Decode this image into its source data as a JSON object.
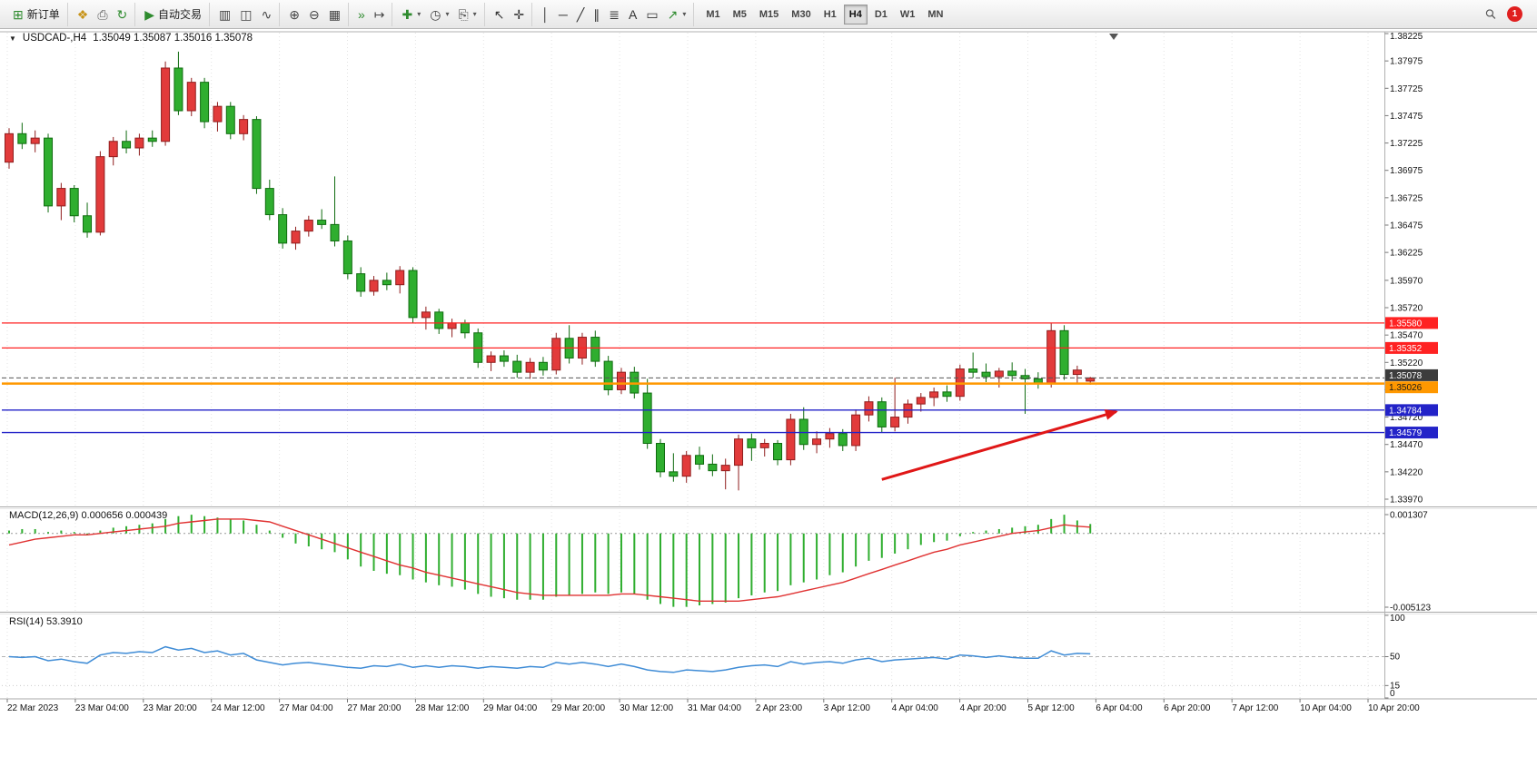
{
  "window": {
    "title": "USDCAD-,H4"
  },
  "toolbar": {
    "groups": [
      {
        "name": "trade",
        "items": [
          {
            "name": "new-order-button",
            "glyph": "⊞",
            "color": "#2e8b2e",
            "label": "新订单"
          }
        ]
      },
      {
        "name": "general",
        "items": [
          {
            "name": "profiles-button",
            "glyph": "❖",
            "color": "#c8941a"
          },
          {
            "name": "print-button",
            "glyph": "⎙",
            "color": "#5a5a5a"
          },
          {
            "name": "community-button",
            "glyph": "↻",
            "color": "#2e8b2e"
          }
        ]
      },
      {
        "name": "autotrade",
        "items": [
          {
            "name": "autotrading-button",
            "glyph": "▶",
            "color": "#2e8b2e",
            "label": "自动交易"
          }
        ]
      },
      {
        "name": "chart-type",
        "items": [
          {
            "name": "bar-chart-button",
            "glyph": "▥",
            "color": "#444444"
          },
          {
            "name": "candlestick-chart-button",
            "glyph": "◫",
            "color": "#444444"
          },
          {
            "name": "line-chart-button",
            "glyph": "∿",
            "color": "#444444"
          }
        ]
      },
      {
        "name": "zoom",
        "items": [
          {
            "name": "zoom-in-button",
            "glyph": "⊕",
            "color": "#444444"
          },
          {
            "name": "zoom-out-button",
            "glyph": "⊖",
            "color": "#444444"
          },
          {
            "name": "tile-windows-button",
            "glyph": "▦",
            "color": "#444444"
          }
        ]
      },
      {
        "name": "scroll",
        "items": [
          {
            "name": "auto-scroll-button",
            "glyph": "»",
            "color": "#2e8b2e"
          },
          {
            "name": "chart-shift-button",
            "glyph": "↦",
            "color": "#444444"
          }
        ]
      },
      {
        "name": "insert",
        "items": [
          {
            "name": "indicators-button",
            "glyph": "✚",
            "color": "#2e8b2e",
            "dropdown": true
          },
          {
            "name": "periods-button",
            "glyph": "◷",
            "color": "#444444",
            "dropdown": true
          },
          {
            "name": "templates-button",
            "glyph": "⎘",
            "color": "#444444",
            "dropdown": true
          }
        ]
      },
      {
        "name": "cursor",
        "items": [
          {
            "name": "cursor-button",
            "glyph": "↖",
            "color": "#333333"
          },
          {
            "name": "crosshair-button",
            "glyph": "✛",
            "color": "#333333"
          }
        ]
      },
      {
        "name": "objects",
        "items": [
          {
            "name": "vertical-line-button",
            "glyph": "│",
            "color": "#333333"
          },
          {
            "name": "horizontal-line-button",
            "glyph": "─",
            "color": "#333333"
          },
          {
            "name": "trendline-button",
            "glyph": "╱",
            "color": "#333333"
          },
          {
            "name": "equidistant-channel-button",
            "glyph": "∥",
            "color": "#333333"
          },
          {
            "name": "fibonacci-button",
            "glyph": "≣",
            "color": "#333333"
          },
          {
            "name": "text-button",
            "glyph": "A",
            "color": "#333333"
          },
          {
            "name": "text-label-button",
            "glyph": "▭",
            "color": "#333333"
          },
          {
            "name": "arrows-button",
            "glyph": "↗",
            "color": "#2e8b2e",
            "dropdown": true
          }
        ]
      }
    ],
    "timeframes": [
      {
        "label": "M1"
      },
      {
        "label": "M5"
      },
      {
        "label": "M15"
      },
      {
        "label": "M30"
      },
      {
        "label": "H1"
      },
      {
        "label": "H4",
        "active": true
      },
      {
        "label": "D1"
      },
      {
        "label": "W1"
      },
      {
        "label": "MN"
      }
    ],
    "badge": "1"
  },
  "chart": {
    "expander_icon": "▼",
    "symbol_label": "USDCAD-,H4",
    "ohlc_label": "1.35049 1.35087 1.35016 1.35078",
    "price_scale": [
      "1.38225",
      "1.37975",
      "1.37725",
      "1.37475",
      "1.37225",
      "1.36975",
      "1.36725",
      "1.36475",
      "1.36225",
      "1.35970",
      "1.35720",
      "1.35470",
      "1.35220",
      "1.34970",
      "1.34720",
      "1.34470",
      "1.34220",
      "1.33970"
    ],
    "time_scale": [
      "22 Mar 2023",
      "23 Mar 04:00",
      "23 Mar 20:00",
      "24 Mar 12:00",
      "27 Mar 04:00",
      "27 Mar 20:00",
      "28 Mar 12:00",
      "29 Mar 04:00",
      "29 Mar 20:00",
      "30 Mar 12:00",
      "31 Mar 04:00",
      "2 Apr 23:00",
      "3 Apr 12:00",
      "4 Apr 04:00",
      "4 Apr 20:00",
      "5 Apr 12:00",
      "6 Apr 04:00",
      "6 Apr 20:00",
      "7 Apr 12:00",
      "10 Apr 04:00",
      "10 Apr 20:00"
    ],
    "lines": [
      {
        "price": 1.3558,
        "tag": "1.35580",
        "color": "#ff2222",
        "tag_bg": "#ff2222",
        "tag_text": "#ffffff",
        "width": 1.2,
        "style": "solid"
      },
      {
        "price": 1.35352,
        "tag": "1.35352",
        "color": "#ff2222",
        "tag_bg": "#ff2222",
        "tag_text": "#ffffff",
        "width": 1.2,
        "style": "solid"
      },
      {
        "price": 1.35078,
        "tag": "1.35078",
        "color": "#555555",
        "tag_bg": "#3c3c3c",
        "tag_text": "#ffffff",
        "width": 1,
        "style": "dash",
        "tag_dy": -3
      },
      {
        "price": 1.35026,
        "tag": "1.35026",
        "color": "#ff9800",
        "tag_bg": "#ff9800",
        "tag_text": "#1a1a1a",
        "width": 2.5,
        "style": "solid",
        "tag_dy": 4
      },
      {
        "price": 1.34784,
        "tag": "1.34784",
        "color": "#2323c8",
        "tag_bg": "#2323c8",
        "tag_text": "#ffffff",
        "width": 1.4,
        "style": "solid"
      },
      {
        "price": 1.34579,
        "tag": "1.34579",
        "color": "#2323c8",
        "tag_bg": "#2323c8",
        "tag_text": "#ffffff",
        "width": 1.4,
        "style": "solid"
      }
    ],
    "arrow": {
      "from_bar": 67,
      "from_price": 1.3415,
      "to_bar": 85,
      "to_price": 1.3477
    },
    "shift_marker_bar": 84.8
  },
  "panels": {
    "macd_label": "MACD(12,26,9) 0.000656 0.000439",
    "rsi_label": "RSI(14) 53.3910",
    "macd_scale": [
      {
        "label": "0.001307",
        "value": 0.001307
      },
      {
        "label": "-0.005123",
        "value": -0.005123
      }
    ],
    "rsi_scale": [
      {
        "label": "100",
        "value": 100
      },
      {
        "label": "50",
        "value": 50
      },
      {
        "label": "15",
        "value": 15
      },
      {
        "label": "0",
        "value": 0
      }
    ]
  },
  "chart_data": {
    "type": "candlestick",
    "symbol": "USDCAD",
    "timeframe": "H4",
    "ohlc_current": {
      "open": 1.35049,
      "high": 1.35087,
      "low": 1.35016,
      "close": 1.35078
    },
    "ylim": [
      1.3391,
      1.3826
    ],
    "colors": {
      "bull": "#e23b3b",
      "bull_stroke": "#8f1d1d",
      "bear": "#2fae2f",
      "bear_stroke": "#0f6b0f",
      "macd_histogram": "#2fae2f",
      "macd_signal": "#e03232",
      "rsi_line": "#3f8cd6",
      "arrow": "#e01717"
    },
    "candles": [
      [
        1.3705,
        1.3736,
        1.3699,
        1.3731
      ],
      [
        1.3731,
        1.3741,
        1.3717,
        1.3722
      ],
      [
        1.3722,
        1.3734,
        1.3714,
        1.3727
      ],
      [
        1.3727,
        1.3731,
        1.3659,
        1.3665
      ],
      [
        1.3665,
        1.3686,
        1.3652,
        1.3681
      ],
      [
        1.3681,
        1.3684,
        1.365,
        1.3656
      ],
      [
        1.3656,
        1.3668,
        1.3636,
        1.3641
      ],
      [
        1.3641,
        1.3715,
        1.3638,
        1.371
      ],
      [
        1.371,
        1.3728,
        1.3702,
        1.3724
      ],
      [
        1.3724,
        1.3734,
        1.3713,
        1.3718
      ],
      [
        1.3718,
        1.3731,
        1.3711,
        1.3727
      ],
      [
        1.3727,
        1.3734,
        1.3719,
        1.3724
      ],
      [
        1.3724,
        1.3797,
        1.372,
        1.3791
      ],
      [
        1.3791,
        1.3806,
        1.3748,
        1.3752
      ],
      [
        1.3752,
        1.3782,
        1.3747,
        1.3778
      ],
      [
        1.3778,
        1.3782,
        1.3736,
        1.3742
      ],
      [
        1.3742,
        1.376,
        1.3733,
        1.3756
      ],
      [
        1.3756,
        1.376,
        1.3726,
        1.3731
      ],
      [
        1.3731,
        1.3748,
        1.3725,
        1.3744
      ],
      [
        1.3744,
        1.3747,
        1.3676,
        1.3681
      ],
      [
        1.3681,
        1.3689,
        1.3652,
        1.3657
      ],
      [
        1.3657,
        1.3663,
        1.3626,
        1.3631
      ],
      [
        1.3631,
        1.3646,
        1.3625,
        1.3642
      ],
      [
        1.3642,
        1.3656,
        1.3637,
        1.3652
      ],
      [
        1.3652,
        1.3662,
        1.3644,
        1.3648
      ],
      [
        1.3648,
        1.3692,
        1.3628,
        1.3633
      ],
      [
        1.3633,
        1.3638,
        1.3598,
        1.3603
      ],
      [
        1.3603,
        1.3609,
        1.3582,
        1.3587
      ],
      [
        1.3587,
        1.3601,
        1.3583,
        1.3597
      ],
      [
        1.3597,
        1.3604,
        1.3588,
        1.3593
      ],
      [
        1.3593,
        1.361,
        1.3585,
        1.3606
      ],
      [
        1.3606,
        1.3609,
        1.3558,
        1.3563
      ],
      [
        1.3563,
        1.3573,
        1.3552,
        1.3568
      ],
      [
        1.3568,
        1.3571,
        1.3548,
        1.3553
      ],
      [
        1.3553,
        1.3562,
        1.3545,
        1.3558
      ],
      [
        1.3558,
        1.3561,
        1.3544,
        1.3549
      ],
      [
        1.3549,
        1.3553,
        1.3517,
        1.3522
      ],
      [
        1.3522,
        1.3532,
        1.3514,
        1.3528
      ],
      [
        1.3528,
        1.3533,
        1.3518,
        1.3523
      ],
      [
        1.3523,
        1.3529,
        1.3508,
        1.3513
      ],
      [
        1.3513,
        1.3526,
        1.3507,
        1.3522
      ],
      [
        1.3522,
        1.3527,
        1.351,
        1.3515
      ],
      [
        1.3515,
        1.3549,
        1.3511,
        1.3544
      ],
      [
        1.3544,
        1.3556,
        1.3521,
        1.3526
      ],
      [
        1.3526,
        1.3549,
        1.352,
        1.3545
      ],
      [
        1.3545,
        1.3551,
        1.3518,
        1.3523
      ],
      [
        1.3523,
        1.3528,
        1.3492,
        1.3497
      ],
      [
        1.3497,
        1.3517,
        1.3493,
        1.3513
      ],
      [
        1.3513,
        1.3518,
        1.3489,
        1.3494
      ],
      [
        1.3494,
        1.3507,
        1.3443,
        1.3448
      ],
      [
        1.3448,
        1.3452,
        1.3417,
        1.3422
      ],
      [
        1.3422,
        1.3439,
        1.3413,
        1.3418
      ],
      [
        1.3418,
        1.3441,
        1.3412,
        1.3437
      ],
      [
        1.3437,
        1.3445,
        1.3424,
        1.3429
      ],
      [
        1.3429,
        1.3438,
        1.3418,
        1.3423
      ],
      [
        1.3423,
        1.3434,
        1.3406,
        1.3428
      ],
      [
        1.3428,
        1.3456,
        1.3405,
        1.3452
      ],
      [
        1.3452,
        1.3457,
        1.3432,
        1.3444
      ],
      [
        1.3444,
        1.3452,
        1.3436,
        1.3448
      ],
      [
        1.3448,
        1.3451,
        1.3428,
        1.3433
      ],
      [
        1.3433,
        1.3475,
        1.3428,
        1.347
      ],
      [
        1.347,
        1.3481,
        1.3442,
        1.3447
      ],
      [
        1.3447,
        1.3459,
        1.3439,
        1.3452
      ],
      [
        1.3452,
        1.3462,
        1.3444,
        1.3457
      ],
      [
        1.3457,
        1.3461,
        1.3441,
        1.3446
      ],
      [
        1.3446,
        1.3479,
        1.3441,
        1.3474
      ],
      [
        1.3474,
        1.3491,
        1.3468,
        1.3486
      ],
      [
        1.3486,
        1.349,
        1.3458,
        1.3463
      ],
      [
        1.3463,
        1.3508,
        1.3459,
        1.3472
      ],
      [
        1.3472,
        1.3488,
        1.3466,
        1.3484
      ],
      [
        1.3484,
        1.3494,
        1.3477,
        1.349
      ],
      [
        1.349,
        1.3499,
        1.3482,
        1.3495
      ],
      [
        1.3495,
        1.3501,
        1.3486,
        1.3491
      ],
      [
        1.3491,
        1.352,
        1.3487,
        1.3516
      ],
      [
        1.3516,
        1.3531,
        1.3508,
        1.3513
      ],
      [
        1.3513,
        1.3521,
        1.3504,
        1.3509
      ],
      [
        1.3509,
        1.3517,
        1.3499,
        1.3514
      ],
      [
        1.3514,
        1.3522,
        1.3505,
        1.351
      ],
      [
        1.351,
        1.3516,
        1.3475,
        1.3507
      ],
      [
        1.3507,
        1.3513,
        1.3498,
        1.3503
      ],
      [
        1.3503,
        1.3558,
        1.3499,
        1.3551
      ],
      [
        1.3551,
        1.3556,
        1.3506,
        1.3511
      ],
      [
        1.3511,
        1.3519,
        1.3502,
        1.3515
      ],
      [
        1.35049,
        1.35087,
        1.35016,
        1.35078
      ]
    ],
    "indicators": {
      "macd": {
        "params": [
          12,
          26,
          9
        ],
        "last_main": 0.000656,
        "last_signal": 0.000439,
        "scale_max": 0.001307,
        "scale_min": -0.005123,
        "histogram": [
          0.0002,
          0.0003,
          0.0003,
          0.0001,
          0.0002,
          0.0001,
          -0.0001,
          0.0002,
          0.0004,
          0.0005,
          0.0006,
          0.0007,
          0.001,
          0.0012,
          0.0013,
          0.0012,
          0.0011,
          0.001,
          0.0009,
          0.0006,
          0.0002,
          -0.0003,
          -0.0007,
          -0.0009,
          -0.0011,
          -0.0013,
          -0.0018,
          -0.0023,
          -0.0026,
          -0.0028,
          -0.0029,
          -0.0032,
          -0.0034,
          -0.0036,
          -0.0037,
          -0.0039,
          -0.0042,
          -0.0044,
          -0.0045,
          -0.0046,
          -0.0046,
          -0.0046,
          -0.0044,
          -0.0043,
          -0.0042,
          -0.0041,
          -0.0042,
          -0.0041,
          -0.0042,
          -0.0046,
          -0.0049,
          -0.0051,
          -0.0051,
          -0.005,
          -0.0049,
          -0.0048,
          -0.0045,
          -0.0043,
          -0.0041,
          -0.004,
          -0.0036,
          -0.0034,
          -0.0032,
          -0.0029,
          -0.0027,
          -0.0023,
          -0.0019,
          -0.0017,
          -0.0014,
          -0.0011,
          -0.0008,
          -0.0006,
          -0.0005,
          -0.0002,
          0.0001,
          0.0002,
          0.0003,
          0.0004,
          0.0005,
          0.0006,
          0.001,
          0.0013,
          0.0009,
          0.000656
        ],
        "signal": [
          -0.0008,
          -0.0006,
          -0.0004,
          -0.0003,
          -0.0002,
          -0.0001,
          -0.0001,
          0.0,
          0.0001,
          0.0002,
          0.0003,
          0.0004,
          0.0005,
          0.0007,
          0.0008,
          0.0009,
          0.001,
          0.001,
          0.001,
          0.0009,
          0.0008,
          0.0005,
          0.0002,
          -0.0001,
          -0.0004,
          -0.0007,
          -0.001,
          -0.0013,
          -0.0016,
          -0.0019,
          -0.0022,
          -0.0024,
          -0.0027,
          -0.0029,
          -0.0031,
          -0.0033,
          -0.0035,
          -0.0037,
          -0.0039,
          -0.0041,
          -0.0042,
          -0.0043,
          -0.0043,
          -0.0043,
          -0.0043,
          -0.0043,
          -0.0043,
          -0.0042,
          -0.0042,
          -0.0043,
          -0.0044,
          -0.0045,
          -0.0046,
          -0.0047,
          -0.0047,
          -0.0047,
          -0.0047,
          -0.0046,
          -0.0045,
          -0.0044,
          -0.0042,
          -0.004,
          -0.0038,
          -0.0036,
          -0.0034,
          -0.0031,
          -0.0028,
          -0.0025,
          -0.0022,
          -0.0019,
          -0.0016,
          -0.0013,
          -0.0011,
          -0.0008,
          -0.0006,
          -0.0004,
          -0.0002,
          0.0,
          0.0001,
          0.0002,
          0.0004,
          0.0006,
          0.0005,
          0.000439
        ]
      },
      "rsi": {
        "period": 14,
        "last": 53.391,
        "values": [
          50,
          49,
          50,
          45,
          47,
          44,
          42,
          52,
          55,
          54,
          56,
          55,
          62,
          58,
          60,
          55,
          57,
          52,
          54,
          46,
          43,
          40,
          42,
          43,
          41,
          39,
          37,
          36,
          39,
          38,
          41,
          37,
          39,
          37,
          39,
          38,
          36,
          38,
          37,
          36,
          38,
          37,
          43,
          41,
          43,
          41,
          38,
          41,
          38,
          34,
          32,
          31,
          34,
          33,
          32,
          34,
          37,
          39,
          40,
          38,
          44,
          41,
          43,
          44,
          42,
          46,
          48,
          44,
          46,
          47,
          48,
          49,
          47,
          52,
          51,
          49,
          51,
          49,
          48,
          48,
          57,
          52,
          54,
          53.39
        ]
      }
    }
  }
}
